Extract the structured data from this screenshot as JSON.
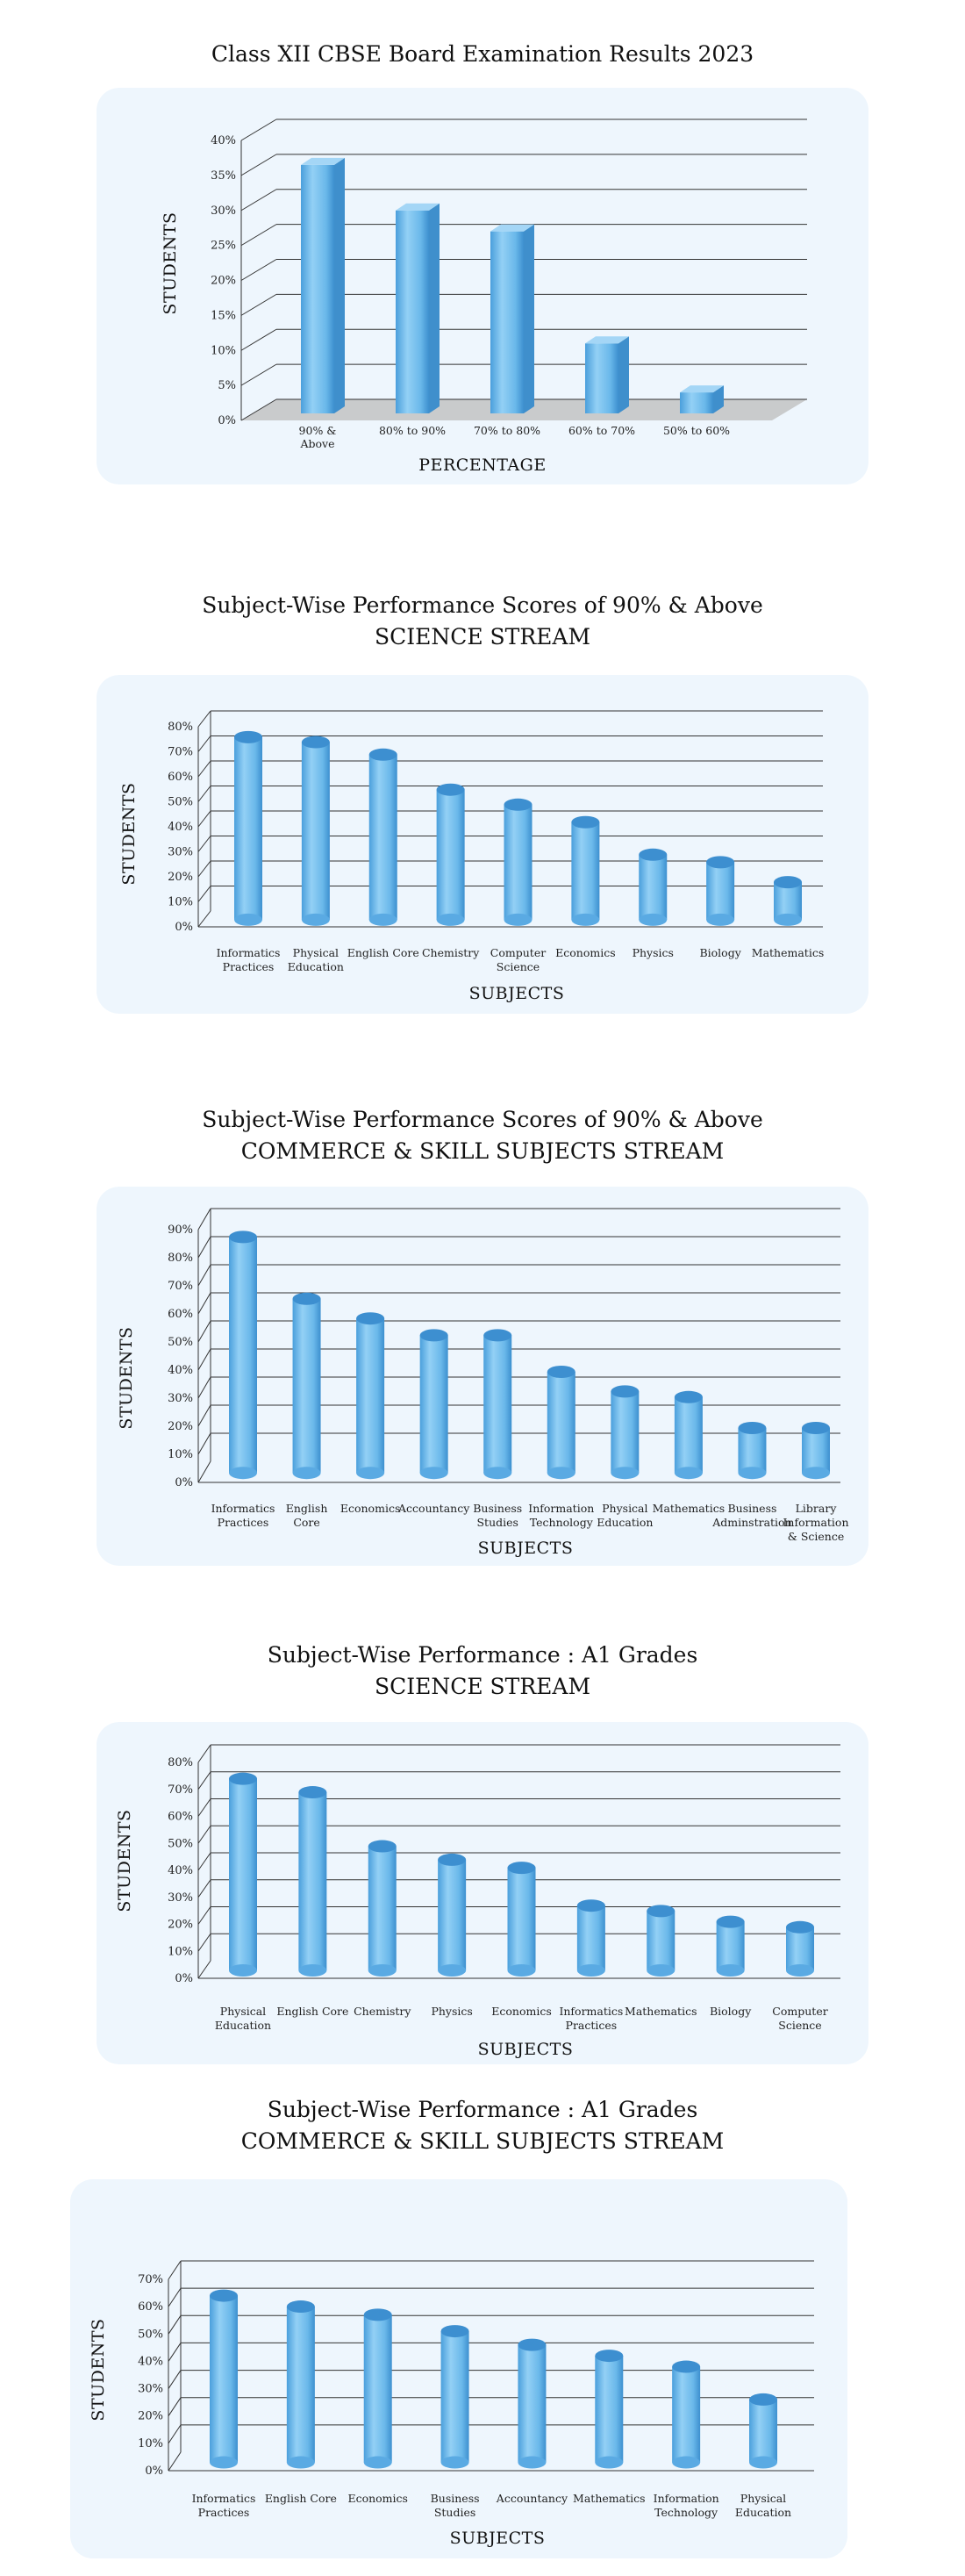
{
  "charts": [
    {
      "title": "Class XII CBSE Board Examination Results 2023",
      "subtitle": "",
      "chart_data": {
        "type": "bar",
        "style": "3d-box",
        "categories": [
          "90% & Above",
          "80% to 90%",
          "70% to 80%",
          "60% to 70%",
          "50% to 60%"
        ],
        "values": [
          35.5,
          29,
          26,
          10,
          3
        ],
        "ylim": [
          0,
          40
        ],
        "yticks": [
          "0%",
          "5%",
          "10%",
          "15%",
          "20%",
          "25%",
          "30%",
          "35%",
          "40%"
        ],
        "xlabel": "PERCENTAGE",
        "ylabel": "STUDENTS",
        "grid": true,
        "bar_color": "#6ab8ea"
      }
    },
    {
      "title": "Subject-Wise Performance Scores of 90% & Above",
      "subtitle": "SCIENCE STREAM",
      "chart_data": {
        "type": "bar",
        "style": "cylinder",
        "categories": [
          "Informatics Practices",
          "Physical Education",
          "English Core",
          "Chemistry",
          "Computer Science",
          "Economics",
          "Physics",
          "Biology",
          "Mathematics"
        ],
        "values": [
          73,
          71,
          66,
          52,
          46,
          39,
          26,
          23,
          15
        ],
        "ylim": [
          0,
          80
        ],
        "yticks": [
          "0%",
          "10%",
          "20%",
          "30%",
          "40%",
          "50%",
          "60%",
          "70%",
          "80%"
        ],
        "xlabel": "SUBJECTS",
        "ylabel": "STUDENTS",
        "grid": true,
        "bar_color": "#6ab8ea"
      }
    },
    {
      "title": "Subject-Wise Performance Scores of 90% & Above",
      "subtitle": "COMMERCE & SKILL SUBJECTS STREAM",
      "chart_data": {
        "type": "bar",
        "style": "cylinder",
        "categories": [
          "Informatics Practices",
          "English Core",
          "Economics",
          "Accountancy",
          "Business Studies",
          "Information Technology",
          "Physical Education",
          "Mathematics",
          "Business Adminstration",
          "Library Information & Science"
        ],
        "values": [
          84,
          62,
          55,
          49,
          49,
          36,
          29,
          27,
          16,
          16
        ],
        "ylim": [
          0,
          90
        ],
        "yticks": [
          "0%",
          "10%",
          "20%",
          "30%",
          "40%",
          "50%",
          "60%",
          "70%",
          "80%",
          "90%"
        ],
        "xlabel": "SUBJECTS",
        "ylabel": "STUDENTS",
        "grid": true,
        "bar_color": "#6ab8ea"
      }
    },
    {
      "title": "Subject-Wise Performance : A1 Grades",
      "subtitle": "SCIENCE STREAM",
      "chart_data": {
        "type": "bar",
        "style": "cylinder",
        "categories": [
          "Physical Education",
          "English Core",
          "Chemistry",
          "Physics",
          "Economics",
          "Informatics Practices",
          "Mathematics",
          "Biology",
          "Computer Science"
        ],
        "values": [
          71,
          66,
          46,
          41,
          38,
          24,
          22,
          18,
          16
        ],
        "ylim": [
          0,
          80
        ],
        "yticks": [
          "0%",
          "10%",
          "20%",
          "30%",
          "40%",
          "50%",
          "60%",
          "70%",
          "80%"
        ],
        "xlabel": "SUBJECTS",
        "ylabel": "STUDENTS",
        "grid": true,
        "bar_color": "#6ab8ea"
      }
    },
    {
      "title": "Subject-Wise Performance : A1 Grades",
      "subtitle": "COMMERCE & SKILL SUBJECTS STREAM",
      "chart_data": {
        "type": "bar",
        "style": "cylinder",
        "categories": [
          "Informatics Practices",
          "English Core",
          "Economics",
          "Business Studies",
          "Accountancy",
          "Mathematics",
          "Information Technology",
          "Physical Education"
        ],
        "values": [
          61,
          57,
          54,
          48,
          43,
          39,
          35,
          23
        ],
        "ylim": [
          0,
          70
        ],
        "yticks": [
          "0%",
          "10%",
          "20%",
          "30%",
          "40%",
          "50%",
          "60%",
          "70%"
        ],
        "xlabel": "SUBJECTS",
        "ylabel": "STUDENTS",
        "grid": true,
        "bar_color": "#6ab8ea"
      }
    }
  ]
}
